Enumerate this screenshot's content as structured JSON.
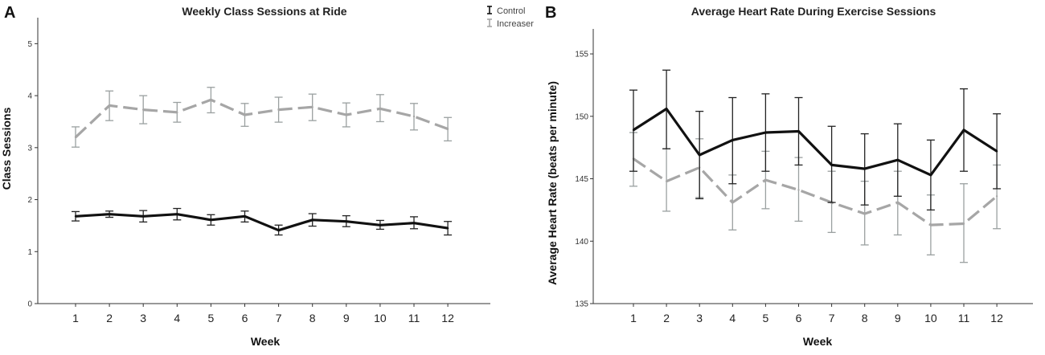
{
  "legend": {
    "control": "Control",
    "increaser": "Increaser"
  },
  "colors": {
    "control": "#111111",
    "increaser": "#a6a6a6"
  },
  "chart_data": [
    {
      "panel": "A",
      "type": "line",
      "title": "Weekly Class Sessions at Ride",
      "xlabel": "Week",
      "ylabel": "Class Sessions",
      "x": [
        "1",
        "2",
        "3",
        "4",
        "5",
        "6",
        "7",
        "8",
        "9",
        "10",
        "11",
        "12"
      ],
      "ylim": [
        0,
        5.5
      ],
      "yticks": [
        "0",
        "1",
        "2",
        "3",
        "4",
        "5"
      ],
      "legend_position": "top-right",
      "series": [
        {
          "name": "Control",
          "values": [
            1.68,
            1.72,
            1.68,
            1.72,
            1.61,
            1.68,
            1.41,
            1.61,
            1.58,
            1.51,
            1.55,
            1.45
          ],
          "err_low": [
            1.59,
            1.66,
            1.57,
            1.61,
            1.51,
            1.57,
            1.32,
            1.49,
            1.48,
            1.43,
            1.44,
            1.32
          ],
          "err_high": [
            1.77,
            1.78,
            1.79,
            1.83,
            1.71,
            1.78,
            1.51,
            1.73,
            1.69,
            1.6,
            1.67,
            1.58
          ]
        },
        {
          "name": "Increaser",
          "values": [
            3.2,
            3.81,
            3.73,
            3.68,
            3.92,
            3.63,
            3.73,
            3.78,
            3.63,
            3.75,
            3.6,
            3.36
          ],
          "err_low": [
            3.01,
            3.52,
            3.46,
            3.49,
            3.67,
            3.41,
            3.49,
            3.52,
            3.4,
            3.5,
            3.34,
            3.13
          ],
          "err_high": [
            3.4,
            4.09,
            4.0,
            3.87,
            4.16,
            3.85,
            3.97,
            4.03,
            3.86,
            4.02,
            3.85,
            3.58
          ]
        }
      ]
    },
    {
      "panel": "B",
      "type": "line",
      "title": "Average Heart Rate During Exercise Sessions",
      "xlabel": "Week",
      "ylabel": "Average Heart Rate (beats per minute)",
      "x": [
        "1",
        "2",
        "3",
        "4",
        "5",
        "6",
        "7",
        "8",
        "9",
        "10",
        "11",
        "12"
      ],
      "ylim": [
        135,
        157
      ],
      "yticks": [
        "135",
        "140",
        "145",
        "150",
        "155"
      ],
      "series": [
        {
          "name": "Control",
          "values": [
            148.9,
            150.6,
            146.9,
            148.1,
            148.7,
            148.8,
            146.1,
            145.8,
            146.5,
            145.3,
            148.9,
            147.2
          ],
          "err_low": [
            145.6,
            147.4,
            143.4,
            144.6,
            145.6,
            146.1,
            143.1,
            142.9,
            143.6,
            142.5,
            145.6,
            144.2
          ],
          "err_high": [
            152.1,
            153.7,
            150.4,
            151.5,
            151.8,
            151.5,
            149.2,
            148.6,
            149.4,
            148.1,
            152.2,
            150.2
          ]
        },
        {
          "name": "Increaser",
          "values": [
            146.6,
            144.8,
            145.9,
            143.1,
            144.9,
            144.1,
            143.1,
            142.2,
            143.1,
            141.3,
            141.4,
            143.6
          ],
          "err_low": [
            144.4,
            142.4,
            143.5,
            140.9,
            142.6,
            141.6,
            140.7,
            139.7,
            140.5,
            138.9,
            138.3,
            141.0
          ],
          "err_high": [
            148.7,
            147.4,
            148.2,
            145.3,
            147.2,
            146.7,
            145.6,
            144.8,
            145.6,
            143.7,
            144.6,
            146.1
          ]
        }
      ]
    }
  ]
}
